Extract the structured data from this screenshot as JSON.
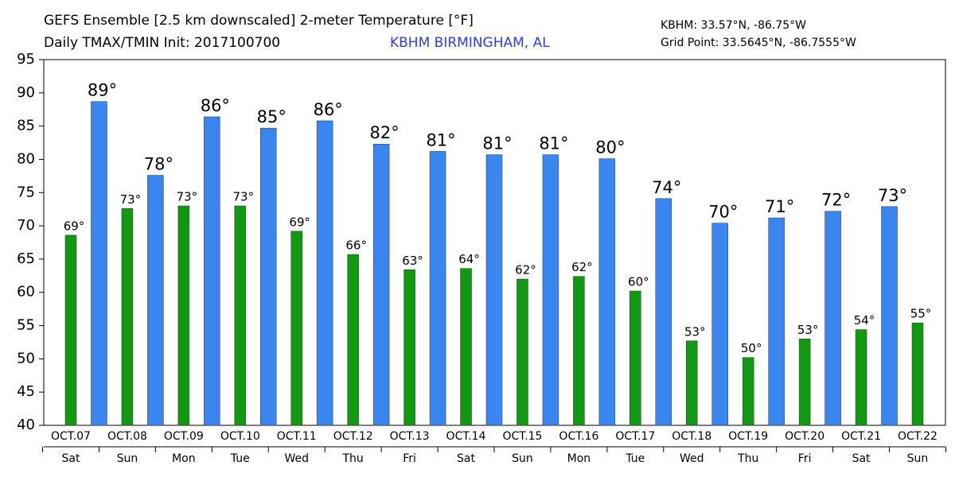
{
  "chart_data": {
    "type": "bar",
    "title": "GEFS Ensemble [2.5 km downscaled] 2-meter Temperature [°F]",
    "subtitle": "Daily TMAX/TMIN Init: 2017100700",
    "location": "KBHM BIRMINGHAM, AL",
    "station_coords": "KBHM: 33.57°N, -86.75°W",
    "grid_point": "Grid Point: 33.5645°N, -86.7555°W",
    "categories": [
      "OCT.07",
      "OCT.08",
      "OCT.09",
      "OCT.10",
      "OCT.11",
      "OCT.12",
      "OCT.13",
      "OCT.14",
      "OCT.15",
      "OCT.16",
      "OCT.17",
      "OCT.18",
      "OCT.19",
      "OCT.20",
      "OCT.21",
      "OCT.22"
    ],
    "weekdays": [
      "Sat",
      "Sun",
      "Mon",
      "Tue",
      "Wed",
      "Thu",
      "Fri",
      "Sat",
      "Sun",
      "Mon",
      "Tue",
      "Wed",
      "Thu",
      "Fri",
      "Sat",
      "Sun"
    ],
    "series": [
      {
        "color": "#119911",
        "values": [
          68.6,
          72.6,
          73.0,
          73.0,
          69.2,
          65.7,
          63.4,
          63.6,
          62.0,
          62.4,
          60.2,
          52.7,
          50.2,
          53.0,
          54.4,
          55.4
        ],
        "value_labels": [
          "69°",
          "73°",
          "73°",
          "73°",
          "69°",
          "66°",
          "63°",
          "64°",
          "62°",
          "62°",
          "60°",
          "53°",
          "50°",
          "53°",
          "54°",
          "55°"
        ]
      },
      {
        "color": "#3a86f0",
        "values": [
          88.7,
          77.6,
          86.4,
          84.7,
          85.8,
          82.3,
          81.2,
          80.7,
          80.7,
          80.1,
          74.1,
          70.4,
          71.2,
          72.2,
          72.9,
          null
        ],
        "value_labels": [
          "89°",
          "78°",
          "86°",
          "85°",
          "86°",
          "82°",
          "81°",
          "81°",
          "81°",
          "80°",
          "74°",
          "70°",
          "71°",
          "72°",
          "73°",
          null
        ]
      }
    ],
    "ylim": [
      40,
      95
    ],
    "yticks": [
      40,
      45,
      50,
      55,
      60,
      65,
      70,
      75,
      80,
      85,
      90,
      95
    ]
  }
}
